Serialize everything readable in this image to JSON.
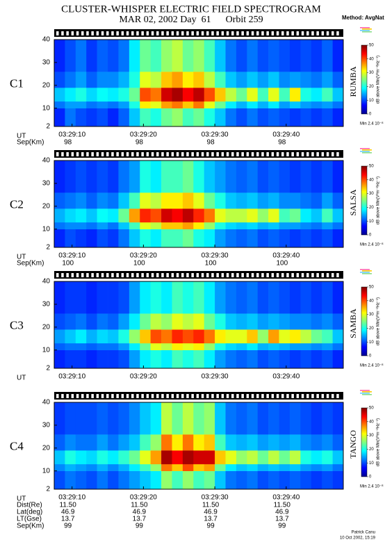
{
  "title": "CLUSTER-WHISPER ELECTRIC FIELD SPECTROGRAM",
  "subtitle": "MAR 02, 2002 Day  61      Orbit 259",
  "method": "Method: AvgNat",
  "credit": [
    "Patrick Canu",
    "10 Oct 2002, 15:19"
  ],
  "chart_data": [
    {
      "type": "heatmap",
      "label": "C1",
      "label_color": "#000000",
      "station": "RUMBA",
      "station_color": "#000000",
      "x_label": "UT",
      "xlim": [
        7.5,
        48
      ],
      "ylim": [
        2,
        40
      ],
      "yticks": [
        2,
        10,
        20,
        30,
        40
      ],
      "xticks": [
        {
          "value": 10,
          "label": "03:29:10"
        },
        {
          "value": 20,
          "label": "03:29:20"
        },
        {
          "value": 30,
          "label": "03:29:30"
        },
        {
          "value": 40,
          "label": "03:29:40"
        }
      ],
      "xbins": [
        7.5,
        9,
        10.5,
        12,
        13.5,
        15,
        16.5,
        18,
        19.5,
        21,
        22.5,
        24,
        25.5,
        27,
        28.5,
        30,
        31.5,
        33,
        34.5,
        36,
        37.5,
        39,
        40.5,
        42,
        43.5,
        45,
        46.5,
        48
      ],
      "ybins": [
        2,
        10,
        13,
        19,
        26,
        40
      ],
      "z": [
        [
          8,
          12,
          16,
          10,
          8
        ],
        [
          12,
          14,
          18,
          12,
          10
        ],
        [
          10,
          14,
          20,
          14,
          12
        ],
        [
          9,
          12,
          17,
          11,
          9
        ],
        [
          10,
          13,
          19,
          13,
          11
        ],
        [
          8,
          12,
          18,
          13,
          10
        ],
        [
          11,
          14,
          20,
          15,
          12
        ],
        [
          16,
          20,
          24,
          20,
          18
        ],
        [
          22,
          32,
          40,
          30,
          24
        ],
        [
          20,
          30,
          38,
          28,
          22
        ],
        [
          24,
          36,
          46,
          34,
          26
        ],
        [
          26,
          38,
          48,
          36,
          28
        ],
        [
          22,
          34,
          44,
          32,
          24
        ],
        [
          24,
          38,
          47,
          34,
          26
        ],
        [
          20,
          30,
          40,
          28,
          22
        ],
        [
          16,
          24,
          34,
          22,
          16
        ],
        [
          12,
          18,
          28,
          16,
          12
        ],
        [
          10,
          15,
          24,
          14,
          10
        ],
        [
          12,
          18,
          30,
          16,
          12
        ],
        [
          10,
          15,
          22,
          14,
          10
        ],
        [
          11,
          18,
          30,
          16,
          11
        ],
        [
          10,
          14,
          22,
          13,
          10
        ],
        [
          9,
          16,
          32,
          14,
          9
        ],
        [
          10,
          14,
          20,
          13,
          10
        ],
        [
          9,
          13,
          18,
          12,
          9
        ],
        [
          10,
          14,
          22,
          14,
          11
        ],
        [
          8,
          12,
          16,
          11,
          8
        ]
      ],
      "clim": [
        0,
        50
      ],
      "cticks": [
        0,
        10,
        20,
        30,
        40,
        50
      ],
      "colorbar_label": "dB above Min(V²m⁻²Hz⁻¹)",
      "colorbar_note": "Min 2.4 10⁻⁸",
      "ephemeris": [
        {
          "label": "Sep(Km)",
          "values": [
            "98",
            "98",
            "98",
            "98"
          ]
        }
      ]
    },
    {
      "type": "heatmap",
      "label": "C2",
      "label_color": "#cc2222",
      "station": "SALSA",
      "station_color": "#aa2222",
      "x_label": "UT",
      "xlim": [
        7.5,
        48
      ],
      "ylim": [
        2,
        40
      ],
      "yticks": [
        2,
        10,
        20,
        30,
        40
      ],
      "xticks": [
        {
          "value": 10,
          "label": "03:29:10"
        },
        {
          "value": 20,
          "label": "03:29:20"
        },
        {
          "value": 30,
          "label": "03:29:30"
        },
        {
          "value": 40,
          "label": "03:29:40"
        }
      ],
      "xbins": [
        7.5,
        9,
        10.5,
        12,
        13.5,
        15,
        16.5,
        18,
        19.5,
        21,
        22.5,
        24,
        25.5,
        27,
        28.5,
        30,
        31.5,
        33,
        34.5,
        36,
        37.5,
        39,
        40.5,
        42,
        43.5,
        45,
        46.5,
        48
      ],
      "ybins": [
        2,
        10,
        13,
        19,
        26,
        40
      ],
      "z": [
        [
          8,
          12,
          15,
          11,
          8
        ],
        [
          10,
          13,
          17,
          12,
          9
        ],
        [
          9,
          13,
          18,
          13,
          10
        ],
        [
          8,
          12,
          16,
          11,
          9
        ],
        [
          10,
          14,
          19,
          13,
          10
        ],
        [
          9,
          12,
          18,
          12,
          9
        ],
        [
          12,
          16,
          24,
          16,
          12
        ],
        [
          16,
          22,
          36,
          22,
          14
        ],
        [
          20,
          30,
          42,
          30,
          20
        ],
        [
          18,
          28,
          40,
          28,
          18
        ],
        [
          22,
          34,
          46,
          32,
          22
        ],
        [
          22,
          34,
          44,
          32,
          22
        ],
        [
          24,
          36,
          47,
          34,
          24
        ],
        [
          20,
          32,
          42,
          30,
          20
        ],
        [
          18,
          26,
          38,
          24,
          16
        ],
        [
          14,
          20,
          30,
          20,
          14
        ],
        [
          12,
          17,
          28,
          16,
          12
        ],
        [
          11,
          16,
          28,
          15,
          11
        ],
        [
          12,
          17,
          30,
          16,
          12
        ],
        [
          10,
          15,
          26,
          14,
          10
        ],
        [
          11,
          16,
          30,
          15,
          11
        ],
        [
          10,
          14,
          22,
          13,
          10
        ],
        [
          9,
          14,
          24,
          13,
          9
        ],
        [
          10,
          13,
          18,
          12,
          10
        ],
        [
          9,
          12,
          16,
          11,
          9
        ],
        [
          10,
          14,
          22,
          14,
          10
        ],
        [
          8,
          12,
          16,
          11,
          8
        ]
      ],
      "clim": [
        0,
        50
      ],
      "cticks": [
        0,
        10,
        20,
        30,
        40,
        50
      ],
      "colorbar_label": "dB above Min(V²m⁻²Hz⁻¹)",
      "colorbar_note": "Min 2.4 10⁻⁸",
      "ephemeris": [
        {
          "label": "Sep(Km)",
          "values": [
            "100",
            "100",
            "100",
            "100"
          ]
        }
      ]
    },
    {
      "type": "heatmap",
      "label": "C3",
      "label_color": "#88dd88",
      "station": "SAMBA",
      "station_color": "#88dd88",
      "x_label": "UT",
      "xlim": [
        7.5,
        48
      ],
      "ylim": [
        2,
        40
      ],
      "yticks": [
        2,
        10,
        20,
        30,
        40
      ],
      "xticks": [
        {
          "value": 10,
          "label": "03:29:10"
        },
        {
          "value": 20,
          "label": "03:29:20"
        },
        {
          "value": 30,
          "label": "03:29:30"
        },
        {
          "value": 40,
          "label": "03:29:40"
        }
      ],
      "xbins": [
        7.5,
        9,
        10.5,
        12,
        13.5,
        15,
        16.5,
        18,
        19.5,
        21,
        22.5,
        24,
        25.5,
        27,
        28.5,
        30,
        31.5,
        33,
        34.5,
        36,
        37.5,
        39,
        40.5,
        42,
        43.5,
        45,
        46.5,
        48
      ],
      "ybins": [
        2,
        10,
        13,
        19,
        26,
        40
      ],
      "z": [
        [
          8,
          11,
          14,
          10,
          8
        ],
        [
          9,
          12,
          16,
          11,
          9
        ],
        [
          9,
          12,
          18,
          12,
          9
        ],
        [
          8,
          11,
          15,
          10,
          8
        ],
        [
          9,
          12,
          17,
          12,
          9
        ],
        [
          9,
          12,
          16,
          11,
          9
        ],
        [
          10,
          14,
          20,
          14,
          10
        ],
        [
          14,
          18,
          26,
          18,
          14
        ],
        [
          18,
          24,
          34,
          24,
          18
        ],
        [
          20,
          30,
          40,
          28,
          20
        ],
        [
          18,
          28,
          38,
          26,
          18
        ],
        [
          22,
          32,
          42,
          30,
          22
        ],
        [
          20,
          30,
          40,
          28,
          20
        ],
        [
          22,
          32,
          42,
          30,
          22
        ],
        [
          18,
          26,
          38,
          24,
          18
        ],
        [
          14,
          20,
          32,
          20,
          14
        ],
        [
          12,
          17,
          30,
          16,
          12
        ],
        [
          11,
          16,
          30,
          15,
          11
        ],
        [
          12,
          18,
          34,
          16,
          12
        ],
        [
          10,
          15,
          26,
          14,
          10
        ],
        [
          11,
          16,
          36,
          15,
          11
        ],
        [
          10,
          15,
          30,
          14,
          10
        ],
        [
          9,
          14,
          32,
          13,
          9
        ],
        [
          10,
          14,
          28,
          13,
          10
        ],
        [
          9,
          13,
          24,
          12,
          9
        ],
        [
          10,
          14,
          22,
          13,
          10
        ],
        [
          8,
          12,
          16,
          11,
          8
        ]
      ],
      "clim": [
        0,
        50
      ],
      "cticks": [
        0,
        10,
        20,
        30,
        40,
        50
      ],
      "colorbar_label": "dB above Min(V²m⁻²Hz⁻¹)",
      "colorbar_note": "Min 2.4 10⁻⁸",
      "ephemeris": []
    },
    {
      "type": "heatmap",
      "label": "C4",
      "label_color": "#3366cc",
      "station": "TANGO",
      "station_color": "#3366cc",
      "x_label": "UT",
      "xlim": [
        7.5,
        48
      ],
      "ylim": [
        2,
        40
      ],
      "yticks": [
        2,
        10,
        20,
        30,
        40
      ],
      "xticks": [
        {
          "value": 10,
          "label": "03:29:10"
        },
        {
          "value": 20,
          "label": "03:29:20"
        },
        {
          "value": 30,
          "label": "03:29:30"
        },
        {
          "value": 40,
          "label": "03:29:40"
        }
      ],
      "xbins": [
        7.5,
        9,
        10.5,
        12,
        13.5,
        15,
        16.5,
        18,
        19.5,
        21,
        22.5,
        24,
        25.5,
        27,
        28.5,
        30,
        31.5,
        33,
        34.5,
        36,
        37.5,
        39,
        40.5,
        42,
        43.5,
        45,
        46.5,
        48
      ],
      "ybins": [
        2,
        10,
        13,
        19,
        26,
        40
      ],
      "z": [
        [
          10,
          13,
          16,
          11,
          9
        ],
        [
          12,
          15,
          20,
          13,
          10
        ],
        [
          11,
          14,
          18,
          12,
          10
        ],
        [
          10,
          13,
          17,
          12,
          10
        ],
        [
          12,
          15,
          20,
          14,
          11
        ],
        [
          10,
          13,
          18,
          12,
          10
        ],
        [
          12,
          15,
          21,
          14,
          11
        ],
        [
          14,
          18,
          24,
          16,
          13
        ],
        [
          16,
          22,
          30,
          22,
          16
        ],
        [
          18,
          26,
          36,
          26,
          18
        ],
        [
          26,
          38,
          48,
          38,
          28
        ],
        [
          22,
          34,
          44,
          32,
          24
        ],
        [
          26,
          40,
          48,
          38,
          28
        ],
        [
          22,
          34,
          46,
          32,
          24
        ],
        [
          24,
          36,
          46,
          34,
          26
        ],
        [
          16,
          24,
          34,
          22,
          16
        ],
        [
          12,
          18,
          30,
          16,
          12
        ],
        [
          11,
          16,
          26,
          15,
          11
        ],
        [
          12,
          17,
          28,
          16,
          12
        ],
        [
          10,
          15,
          24,
          14,
          10
        ],
        [
          11,
          16,
          28,
          15,
          11
        ],
        [
          10,
          15,
          24,
          14,
          10
        ],
        [
          11,
          16,
          28,
          15,
          11
        ],
        [
          10,
          14,
          20,
          13,
          10
        ],
        [
          9,
          13,
          18,
          12,
          9
        ],
        [
          10,
          14,
          20,
          13,
          10
        ],
        [
          9,
          12,
          16,
          11,
          9
        ]
      ],
      "clim": [
        0,
        50
      ],
      "cticks": [
        0,
        10,
        20,
        30,
        40,
        50
      ],
      "colorbar_label": "dB above Min(V²m⁻²Hz⁻¹)",
      "colorbar_note": "Min 2.4 10⁻⁸",
      "ephemeris": [
        {
          "label": "Dist(Re)",
          "values": [
            "11.50",
            "11.50",
            "11.50",
            "11.50"
          ]
        },
        {
          "label": "Lat(deg)",
          "values": [
            "46.9",
            "46.9",
            "46.9",
            "46.9"
          ]
        },
        {
          "label": "LT(Gse)",
          "values": [
            "13.7",
            "13.7",
            "13.7",
            "13.7"
          ]
        },
        {
          "label": "Sep(Km)",
          "values": [
            "99",
            "99",
            "99",
            "99"
          ]
        }
      ]
    }
  ]
}
